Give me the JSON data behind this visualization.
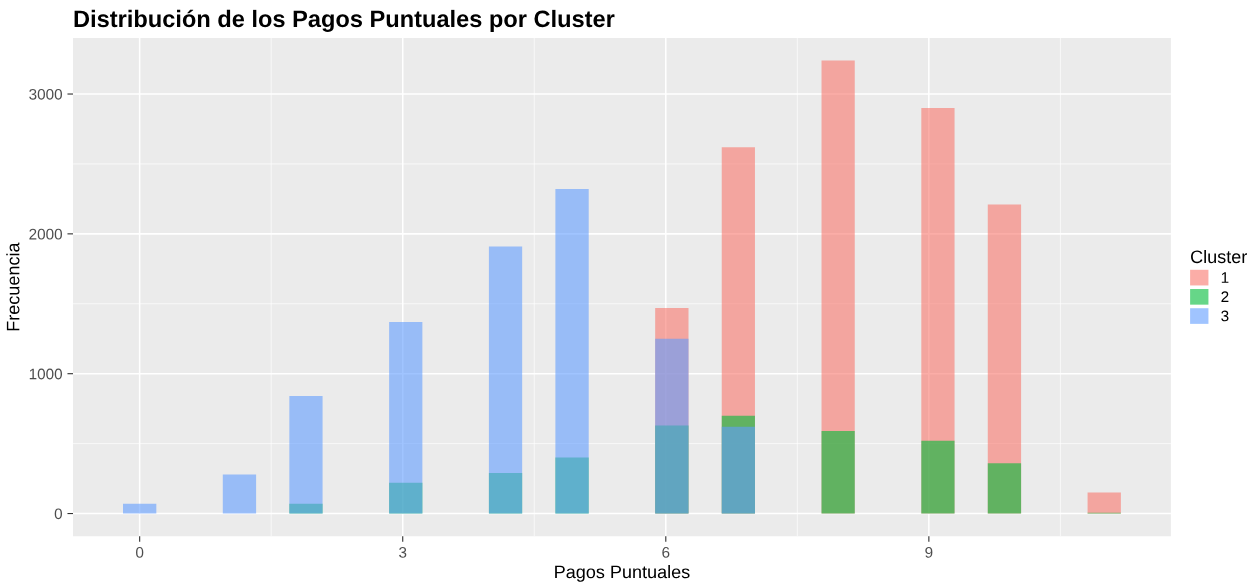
{
  "chart_data": {
    "type": "histogram",
    "title": "Distribución de los Pagos Puntuales por Cluster",
    "xlabel": "Pagos Puntuales",
    "ylabel": "Frecuencia",
    "legend_title": "Cluster",
    "bins": [
      -0.19,
      0.19,
      0.569,
      0.948,
      1.328,
      1.707,
      2.086,
      2.466,
      2.845,
      3.224,
      3.603,
      3.983,
      4.362,
      4.741,
      5.121,
      5.5,
      5.879,
      6.259,
      6.638,
      7.017,
      7.397,
      7.776,
      8.155,
      8.534,
      8.914,
      9.293,
      9.672,
      10.052,
      10.431,
      10.81,
      11.19
    ],
    "series": [
      {
        "name": "1",
        "color": "#f8766d",
        "values": [
          0,
          0,
          0,
          0,
          0,
          0,
          0,
          0,
          0,
          0,
          0,
          0,
          0,
          0,
          0,
          0,
          1470,
          0,
          2620,
          0,
          0,
          3240,
          0,
          0,
          2900,
          0,
          2210,
          0,
          0,
          150
        ]
      },
      {
        "name": "2",
        "color": "#00ba38",
        "values": [
          0,
          0,
          0,
          0,
          0,
          70,
          0,
          0,
          220,
          0,
          0,
          290,
          0,
          400,
          0,
          0,
          630,
          0,
          700,
          0,
          0,
          590,
          0,
          0,
          520,
          0,
          360,
          0,
          0,
          5
        ]
      },
      {
        "name": "3",
        "color": "#619cff",
        "values": [
          70,
          0,
          0,
          280,
          0,
          840,
          0,
          0,
          1370,
          0,
          0,
          1910,
          0,
          2320,
          0,
          0,
          1250,
          0,
          620,
          0,
          0,
          0,
          0,
          0,
          0,
          0,
          0,
          0,
          0,
          0
        ]
      }
    ],
    "xlim": [
      -0.76,
      11.76
    ],
    "xticks": [
      0,
      3,
      6,
      9
    ],
    "ylim": [
      -162,
      3400
    ],
    "yticks": [
      0,
      1000,
      2000,
      3000
    ],
    "grid": true,
    "legend": "right"
  }
}
